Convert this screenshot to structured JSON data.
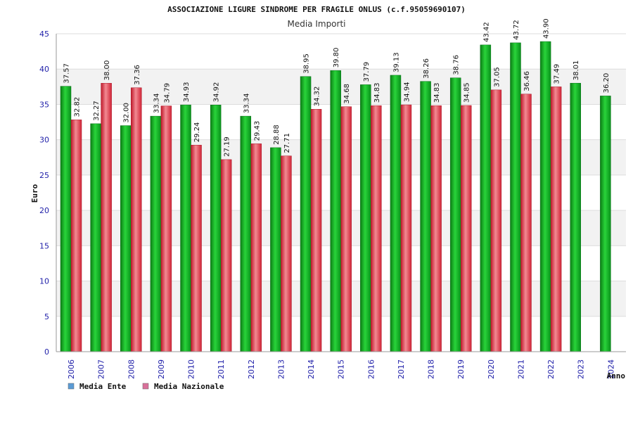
{
  "chart_data": {
    "type": "bar",
    "title": "ASSOCIAZIONE LIGURE SINDROME PER FRAGILE ONLUS (c.f.95059690107)",
    "subtitle": "Media Importi",
    "xlabel": "Anno",
    "ylabel": "Euro",
    "ylim": [
      0,
      45
    ],
    "yticks": [
      0,
      5,
      10,
      15,
      20,
      25,
      30,
      35,
      40,
      45
    ],
    "grid": true,
    "legend_position": "bottom-left",
    "categories": [
      "2006",
      "2007",
      "2008",
      "2009",
      "2010",
      "2011",
      "2012",
      "2013",
      "2014",
      "2015",
      "2016",
      "2017",
      "2018",
      "2019",
      "2020",
      "2021",
      "2022",
      "2023",
      "2024"
    ],
    "series": [
      {
        "name": "Media Ente",
        "color": "#0aa81e",
        "legend_color": "#5b9bd5",
        "values": [
          37.57,
          32.27,
          32.0,
          33.34,
          34.93,
          34.92,
          33.34,
          28.88,
          38.95,
          39.8,
          37.79,
          39.13,
          38.26,
          38.76,
          43.42,
          43.72,
          43.9,
          38.01,
          36.2
        ],
        "labels": [
          "37.57",
          "32.27",
          "32.00",
          "33.34",
          "34.93",
          "34.92",
          "33.34",
          "28.88",
          "38.95",
          "39.80",
          "37.79",
          "39.13",
          "38.26",
          "38.76",
          "43.42",
          "43.72",
          "43.90",
          "38.01",
          "36.20"
        ]
      },
      {
        "name": "Media Nazionale",
        "color": "#e23c4c",
        "legend_color": "#d9709a",
        "values": [
          32.82,
          38.0,
          37.36,
          34.79,
          29.24,
          27.19,
          29.43,
          27.71,
          34.32,
          34.68,
          34.83,
          34.94,
          34.83,
          34.85,
          37.05,
          36.46,
          37.49,
          null,
          null
        ],
        "labels": [
          "32.82",
          "38.00",
          "37.36",
          "34.79",
          "29.24",
          "27.19",
          "29.43",
          "27.71",
          "34.32",
          "34.68",
          "34.83",
          "34.94",
          "34.83",
          "34.85",
          "37.05",
          "36.46",
          "37.49",
          null,
          null
        ]
      }
    ]
  }
}
